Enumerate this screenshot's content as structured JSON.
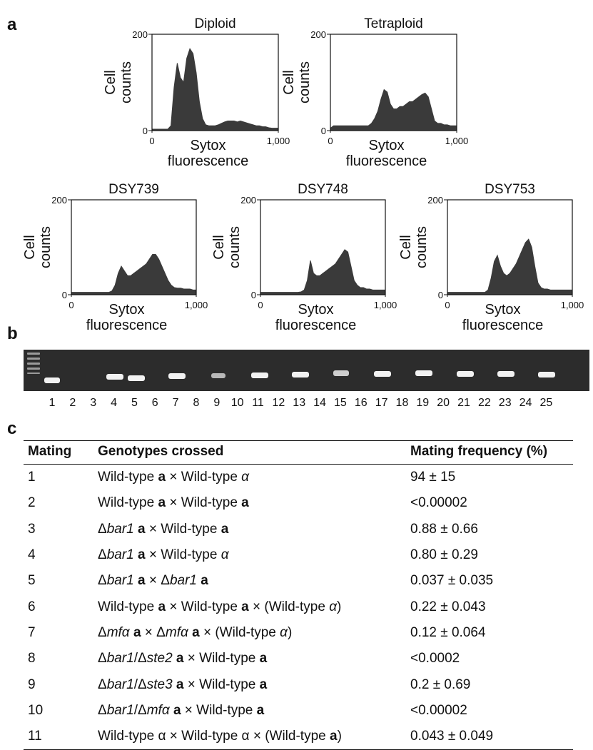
{
  "panel_labels": [
    "a",
    "b",
    "c"
  ],
  "histograms": [
    {
      "type": "area",
      "title": "Diploid",
      "ylabel": [
        "Cell",
        "counts"
      ],
      "xlabel": [
        "Sytox",
        "fluorescence"
      ],
      "color": "#3a3a3a",
      "xlim": [
        0,
        1000
      ],
      "ylim": [
        0,
        200
      ],
      "xticks": [
        0,
        {
          "value": 1000,
          "label": "1,000"
        }
      ],
      "yticks": [
        0,
        200
      ],
      "x": [
        0,
        25,
        50,
        75,
        100,
        125,
        150,
        175,
        200,
        225,
        250,
        275,
        300,
        325,
        350,
        375,
        400,
        425,
        450,
        475,
        500,
        525,
        550,
        575,
        600,
        625,
        650,
        675,
        700,
        725,
        750,
        775,
        800,
        825,
        850,
        875,
        900,
        925,
        950,
        975,
        1000
      ],
      "values": [
        3,
        3,
        3,
        3,
        3,
        3,
        10,
        90,
        140,
        110,
        100,
        150,
        170,
        160,
        120,
        60,
        25,
        12,
        10,
        10,
        10,
        12,
        15,
        18,
        20,
        20,
        20,
        18,
        20,
        18,
        16,
        14,
        12,
        10,
        10,
        8,
        8,
        6,
        5,
        5,
        5
      ]
    },
    {
      "type": "area",
      "title": "Tetraploid",
      "ylabel": [
        "Cell",
        "counts"
      ],
      "xlabel": [
        "Sytox",
        "fluorescence"
      ],
      "color": "#3a3a3a",
      "xlim": [
        0,
        1000
      ],
      "ylim": [
        0,
        200
      ],
      "xticks": [
        0,
        {
          "value": 1000,
          "label": "1,000"
        }
      ],
      "yticks": [
        0,
        200
      ],
      "x": [
        0,
        25,
        50,
        75,
        100,
        125,
        150,
        175,
        200,
        225,
        250,
        275,
        300,
        325,
        350,
        375,
        400,
        425,
        450,
        475,
        500,
        525,
        550,
        575,
        600,
        625,
        650,
        675,
        700,
        725,
        750,
        775,
        800,
        825,
        850,
        875,
        900,
        925,
        950,
        975,
        1000
      ],
      "values": [
        5,
        10,
        10,
        10,
        10,
        10,
        10,
        10,
        10,
        10,
        10,
        10,
        10,
        15,
        25,
        40,
        65,
        85,
        80,
        55,
        45,
        45,
        50,
        50,
        55,
        60,
        60,
        65,
        70,
        75,
        78,
        70,
        45,
        20,
        15,
        15,
        12,
        12,
        10,
        10,
        10
      ]
    },
    {
      "type": "area",
      "title": "DSY739",
      "ylabel": [
        "Cell",
        "counts"
      ],
      "xlabel": [
        "Sytox",
        "fluorescence"
      ],
      "color": "#3a3a3a",
      "xlim": [
        0,
        1000
      ],
      "ylim": [
        0,
        200
      ],
      "xticks": [
        0,
        {
          "value": 1000,
          "label": "1,000"
        }
      ],
      "yticks": [
        0,
        200
      ],
      "x": [
        0,
        25,
        50,
        75,
        100,
        125,
        150,
        175,
        200,
        225,
        250,
        275,
        300,
        325,
        350,
        375,
        400,
        425,
        450,
        475,
        500,
        525,
        550,
        575,
        600,
        625,
        650,
        675,
        700,
        725,
        750,
        775,
        800,
        825,
        850,
        875,
        900,
        925,
        950,
        975,
        1000
      ],
      "values": [
        5,
        5,
        5,
        5,
        5,
        5,
        5,
        5,
        5,
        5,
        5,
        5,
        5,
        8,
        20,
        45,
        60,
        50,
        40,
        40,
        45,
        50,
        55,
        60,
        65,
        75,
        85,
        85,
        75,
        60,
        45,
        30,
        20,
        15,
        14,
        14,
        12,
        12,
        12,
        10,
        10
      ]
    },
    {
      "type": "area",
      "title": "DSY748",
      "ylabel": [
        "Cell",
        "counts"
      ],
      "xlabel": [
        "Sytox",
        "fluorescence"
      ],
      "color": "#3a3a3a",
      "xlim": [
        0,
        1000
      ],
      "ylim": [
        0,
        200
      ],
      "xticks": [
        0,
        {
          "value": 1000,
          "label": "1,000"
        }
      ],
      "yticks": [
        0,
        200
      ],
      "x": [
        0,
        25,
        50,
        75,
        100,
        125,
        150,
        175,
        200,
        225,
        250,
        275,
        300,
        325,
        350,
        375,
        400,
        425,
        450,
        475,
        500,
        525,
        550,
        575,
        600,
        625,
        650,
        675,
        700,
        725,
        750,
        775,
        800,
        825,
        850,
        875,
        900,
        925,
        950,
        975,
        1000
      ],
      "values": [
        5,
        5,
        5,
        5,
        5,
        5,
        5,
        5,
        5,
        5,
        5,
        5,
        5,
        6,
        10,
        30,
        72,
        45,
        40,
        40,
        45,
        50,
        55,
        60,
        65,
        75,
        85,
        95,
        90,
        60,
        30,
        20,
        15,
        15,
        12,
        12,
        10,
        10,
        10,
        10,
        10
      ]
    },
    {
      "type": "area",
      "title": "DSY753",
      "ylabel": [
        "Cell",
        "counts"
      ],
      "xlabel": [
        "Sytox",
        "fluorescence"
      ],
      "color": "#3a3a3a",
      "xlim": [
        0,
        1000
      ],
      "ylim": [
        0,
        200
      ],
      "xticks": [
        0,
        {
          "value": 1000,
          "label": "1,000"
        }
      ],
      "yticks": [
        0,
        200
      ],
      "x": [
        0,
        25,
        50,
        75,
        100,
        125,
        150,
        175,
        200,
        225,
        250,
        275,
        300,
        325,
        350,
        375,
        400,
        425,
        450,
        475,
        500,
        525,
        550,
        575,
        600,
        625,
        650,
        675,
        700,
        725,
        750,
        775,
        800,
        825,
        850,
        875,
        900,
        925,
        950,
        975,
        1000
      ],
      "values": [
        5,
        5,
        5,
        5,
        5,
        5,
        5,
        5,
        5,
        5,
        5,
        5,
        5,
        10,
        35,
        70,
        83,
        60,
        45,
        40,
        45,
        55,
        65,
        80,
        95,
        110,
        117,
        100,
        60,
        25,
        15,
        12,
        12,
        10,
        10,
        10,
        10,
        10,
        10,
        10,
        10
      ]
    }
  ],
  "gel": {
    "lanes": [
      "1",
      "2",
      "3",
      "4",
      "5",
      "6",
      "7",
      "8",
      "9",
      "10",
      "11",
      "12",
      "13",
      "14",
      "15",
      "16",
      "17",
      "18",
      "19",
      "20",
      "21",
      "22",
      "23",
      "24",
      "25"
    ]
  },
  "table": {
    "header": [
      "Mating",
      "Genotypes crossed",
      "Mating frequency (%)"
    ],
    "rows": [
      {
        "mating": "1",
        "genotype": [
          "Wild-type ",
          {
            "text": "a",
            "style": "bold"
          },
          " × Wild-type ",
          {
            "text": "α",
            "style": "italic"
          }
        ],
        "frequency": "94 ± 15"
      },
      {
        "mating": "2",
        "genotype": [
          "Wild-type ",
          {
            "text": "a",
            "style": "bold"
          },
          " × Wild-type ",
          {
            "text": "a",
            "style": "bold"
          }
        ],
        "frequency": "<0.00002"
      },
      {
        "mating": "3",
        "genotype": [
          "Δ",
          {
            "text": "bar1",
            "style": "italic"
          },
          " ",
          {
            "text": "a",
            "style": "bold"
          },
          " × Wild-type ",
          {
            "text": "a",
            "style": "bold"
          }
        ],
        "frequency": "0.88 ± 0.66"
      },
      {
        "mating": "4",
        "genotype": [
          "Δ",
          {
            "text": "bar1",
            "style": "italic"
          },
          " ",
          {
            "text": "a",
            "style": "bold"
          },
          " × Wild-type ",
          {
            "text": "α",
            "style": "italic"
          }
        ],
        "frequency": "0.80 ± 0.29"
      },
      {
        "mating": "5",
        "genotype": [
          "Δ",
          {
            "text": "bar1",
            "style": "italic"
          },
          " ",
          {
            "text": "a",
            "style": "bold"
          },
          " × Δ",
          {
            "text": "bar1",
            "style": "italic"
          },
          " ",
          {
            "text": "a",
            "style": "bold"
          }
        ],
        "frequency": "0.037 ± 0.035"
      },
      {
        "mating": "6",
        "genotype": [
          "Wild-type ",
          {
            "text": "a",
            "style": "bold"
          },
          " × Wild-type ",
          {
            "text": "a",
            "style": "bold"
          },
          " × (Wild-type ",
          {
            "text": "α",
            "style": "italic"
          },
          ")"
        ],
        "frequency": "0.22 ± 0.043"
      },
      {
        "mating": "7",
        "genotype": [
          "Δ",
          {
            "text": "mfα",
            "style": "italic"
          },
          " ",
          {
            "text": "a",
            "style": "bold"
          },
          " × Δ",
          {
            "text": "mfα",
            "style": "italic"
          },
          " ",
          {
            "text": "a",
            "style": "bold"
          },
          " × (Wild-type ",
          {
            "text": "α",
            "style": "italic"
          },
          ")"
        ],
        "frequency": "0.12 ± 0.064"
      },
      {
        "mating": "8",
        "genotype": [
          "Δ",
          {
            "text": "bar1",
            "style": "italic"
          },
          "/Δ",
          {
            "text": "ste2",
            "style": "italic"
          },
          " ",
          {
            "text": "a",
            "style": "bold"
          },
          " × Wild-type ",
          {
            "text": "a",
            "style": "bold"
          }
        ],
        "frequency": "<0.0002"
      },
      {
        "mating": "9",
        "genotype": [
          "Δ",
          {
            "text": "bar1",
            "style": "italic"
          },
          "/Δ",
          {
            "text": "ste3",
            "style": "italic"
          },
          " ",
          {
            "text": "a",
            "style": "bold"
          },
          " × Wild-type ",
          {
            "text": "a",
            "style": "bold"
          }
        ],
        "frequency": "0.2 ± 0.69"
      },
      {
        "mating": "10",
        "genotype": [
          "Δ",
          {
            "text": "bar1",
            "style": "italic"
          },
          "/Δ",
          {
            "text": "mfα",
            "style": "italic"
          },
          " ",
          {
            "text": "a",
            "style": "bold"
          },
          " × Wild-type ",
          {
            "text": "a",
            "style": "bold"
          }
        ],
        "frequency": "<0.00002"
      },
      {
        "mating": "11",
        "genotype": [
          "Wild-type α × Wild-type α × (Wild-type ",
          {
            "text": "a",
            "style": "bold"
          },
          ")"
        ],
        "frequency": "0.043 ± 0.049"
      }
    ]
  }
}
